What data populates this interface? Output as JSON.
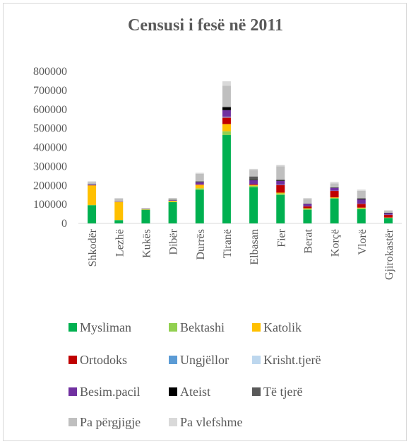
{
  "chart_data": {
    "type": "bar",
    "stacked": true,
    "title": "Censusi i fesë në 2011",
    "xlabel": "",
    "ylabel": "",
    "ylim": [
      0,
      800000
    ],
    "yticks": [
      "0",
      "100000",
      "200000",
      "300000",
      "400000",
      "500000",
      "600000",
      "700000",
      "800000"
    ],
    "grid": false,
    "legend_position": "bottom",
    "categories": [
      "Shkodër",
      "Lezhë",
      "Kukës",
      "Dibër",
      "Durrës",
      "Tiranë",
      "Elbasan",
      "Fier",
      "Berat",
      "Korçë",
      "Vlorë",
      "Gjirokastër"
    ],
    "series": [
      {
        "name": "Mysliman",
        "color": "#00b050",
        "values": [
          95000,
          17000,
          72000,
          112000,
          177000,
          465000,
          190000,
          150000,
          72000,
          130000,
          75000,
          28000
        ]
      },
      {
        "name": "Bektashi",
        "color": "#92d050",
        "values": [
          2000,
          1000,
          1000,
          2000,
          8000,
          20000,
          8000,
          8000,
          6000,
          4000,
          5000,
          2000
        ]
      },
      {
        "name": "Katolik",
        "color": "#ffc000",
        "values": [
          103000,
          95000,
          2000,
          5000,
          17000,
          38000,
          3000,
          4000,
          2000,
          3000,
          3000,
          1000
        ]
      },
      {
        "name": "Ortodoks",
        "color": "#c00000",
        "values": [
          1000,
          500,
          300,
          300,
          3000,
          34000,
          5000,
          40000,
          10000,
          34000,
          20000,
          14000
        ]
      },
      {
        "name": "Ungjëllor",
        "color": "#5b9bd5",
        "values": [
          500,
          300,
          200,
          300,
          800,
          2000,
          500,
          800,
          300,
          500,
          500,
          300
        ]
      },
      {
        "name": "Krisht.tjerë",
        "color": "#bdd7ee",
        "values": [
          500,
          300,
          200,
          300,
          700,
          2000,
          500,
          700,
          300,
          500,
          400,
          300
        ]
      },
      {
        "name": "Besim.pacil",
        "color": "#7030a0",
        "values": [
          3000,
          1000,
          1500,
          3000,
          10000,
          35000,
          20000,
          20000,
          12000,
          15000,
          22000,
          8000
        ]
      },
      {
        "name": "Ateist",
        "color": "#000000",
        "values": [
          1000,
          300,
          300,
          500,
          2000,
          15000,
          2000,
          3000,
          1000,
          2000,
          4000,
          2000
        ]
      },
      {
        "name": "Të tjerë",
        "color": "#595959",
        "values": [
          1000,
          300,
          300,
          1500,
          3000,
          4000,
          18000,
          4000,
          1000,
          1000,
          2000,
          1000
        ]
      },
      {
        "name": "Pa përgjigje",
        "color": "#bfbfbf",
        "values": [
          10000,
          15000,
          2000,
          8000,
          40000,
          110000,
          35000,
          70000,
          25000,
          20000,
          40000,
          10000
        ]
      },
      {
        "name": "Pa vlefshme",
        "color": "#d9d9d9",
        "values": [
          5000,
          3000,
          1000,
          1000,
          5000,
          23000,
          5000,
          8000,
          4000,
          8000,
          6000,
          3000
        ]
      }
    ]
  }
}
